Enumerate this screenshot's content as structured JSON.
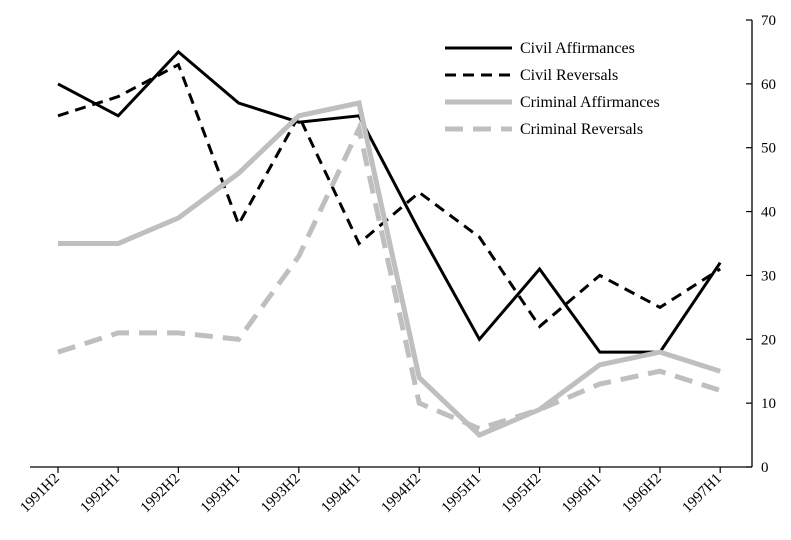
{
  "chart_data": {
    "type": "line",
    "title": "",
    "xlabel": "",
    "ylabel": "",
    "categories": [
      "1991H2",
      "1992H1",
      "1992H2",
      "1993H1",
      "1993H2",
      "1994H1",
      "1994H2",
      "1995H1",
      "1995H2",
      "1996H1",
      "1996H2",
      "1997H1"
    ],
    "ylim": [
      0,
      70
    ],
    "yticks": [
      0,
      10,
      20,
      30,
      40,
      50,
      60,
      70
    ],
    "y_axis_side": "right",
    "grid": false,
    "legend_position": "top-right",
    "series": [
      {
        "name": "Civil Affirmances",
        "color": "#000000",
        "dash": "solid",
        "values": [
          60,
          55,
          65,
          57,
          54,
          55,
          37,
          20,
          31,
          18,
          18,
          32
        ]
      },
      {
        "name": "Civil Reversals",
        "color": "#000000",
        "dash": "dashed",
        "values": [
          55,
          58,
          63,
          38,
          55,
          35,
          43,
          36,
          22,
          30,
          25,
          31
        ]
      },
      {
        "name": "Criminal Affirmances",
        "color": "#bfbfbf",
        "dash": "solid",
        "values": [
          35,
          35,
          39,
          46,
          55,
          57,
          14,
          5,
          9,
          16,
          18,
          15
        ]
      },
      {
        "name": "Criminal Reversals",
        "color": "#bfbfbf",
        "dash": "dashed",
        "values": [
          18,
          21,
          21,
          20,
          33,
          53,
          10,
          6,
          9,
          13,
          15,
          12
        ]
      }
    ]
  }
}
